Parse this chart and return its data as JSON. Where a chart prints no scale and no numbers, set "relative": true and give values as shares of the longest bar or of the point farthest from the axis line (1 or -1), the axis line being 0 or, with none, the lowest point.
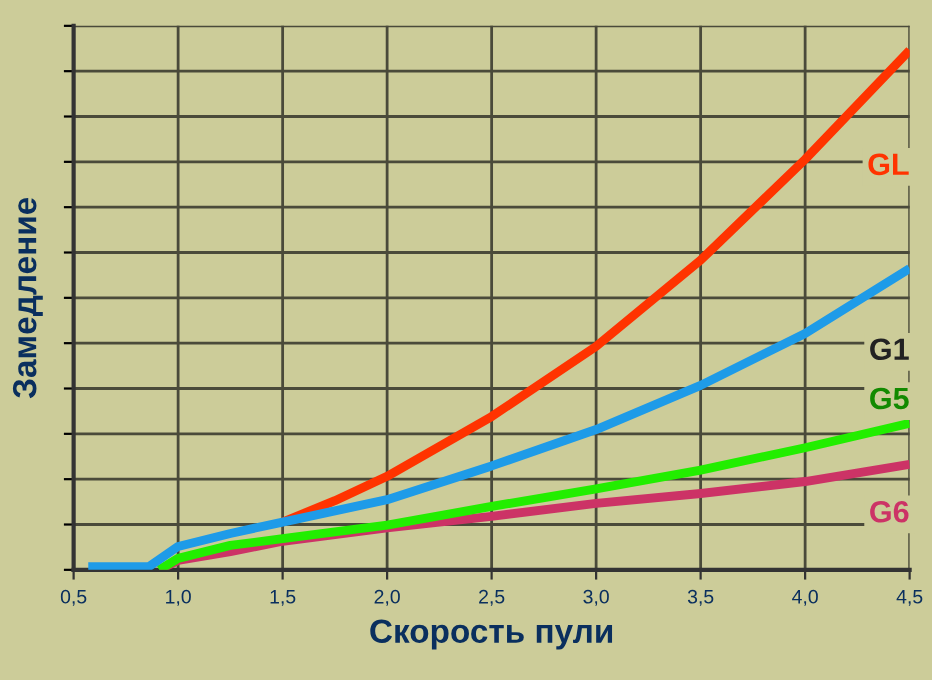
{
  "chart_data": {
    "type": "line",
    "relative": true,
    "xlabel": "Скорость пули",
    "ylabel": "Замедление",
    "xlim": [
      0.5,
      4.5
    ],
    "xticks": [
      {
        "value": 0.5,
        "label": "0,5"
      },
      {
        "value": 1.0,
        "label": "1,0"
      },
      {
        "value": 1.5,
        "label": "1,5"
      },
      {
        "value": 2.0,
        "label": "2,0"
      },
      {
        "value": 2.5,
        "label": "2,5"
      },
      {
        "value": 3.0,
        "label": "3,0"
      },
      {
        "value": 3.5,
        "label": "3,5"
      },
      {
        "value": 4.0,
        "label": "4,0"
      },
      {
        "value": 4.5,
        "label": "4,5"
      }
    ],
    "grid": true,
    "marker": "none",
    "line_style": "solid",
    "series": [
      {
        "name": "GL",
        "color": "#ff3300",
        "x": [
          1.5,
          1.75,
          2.0,
          2.5,
          3.0,
          3.5,
          4.0,
          4.5
        ],
        "values": [
          0.092,
          0.133,
          0.18,
          0.295,
          0.43,
          0.596,
          0.79,
          1.0
        ]
      },
      {
        "name": "G1",
        "color": "#1e9be8",
        "x": [
          0.57,
          0.86,
          1.0,
          1.25,
          1.5,
          2.0,
          2.5,
          3.0,
          3.5,
          4.0,
          4.5
        ],
        "values": [
          0.006,
          0.006,
          0.045,
          0.07,
          0.092,
          0.135,
          0.2,
          0.27,
          0.355,
          0.455,
          0.58
        ]
      },
      {
        "name": "G5",
        "color": "#22ee00",
        "x": [
          0.91,
          1.0,
          1.25,
          1.5,
          2.0,
          2.5,
          3.0,
          3.5,
          4.0,
          4.5
        ],
        "values": [
          0.0,
          0.022,
          0.047,
          0.06,
          0.086,
          0.122,
          0.156,
          0.192,
          0.235,
          0.282
        ]
      },
      {
        "name": "G6",
        "color": "#cc3366",
        "x": [
          0.91,
          1.0,
          1.25,
          1.5,
          2.0,
          2.5,
          3.0,
          3.5,
          4.0,
          4.5
        ],
        "values": [
          0.0,
          0.018,
          0.035,
          0.055,
          0.081,
          0.103,
          0.128,
          0.147,
          0.17,
          0.203
        ]
      }
    ]
  }
}
